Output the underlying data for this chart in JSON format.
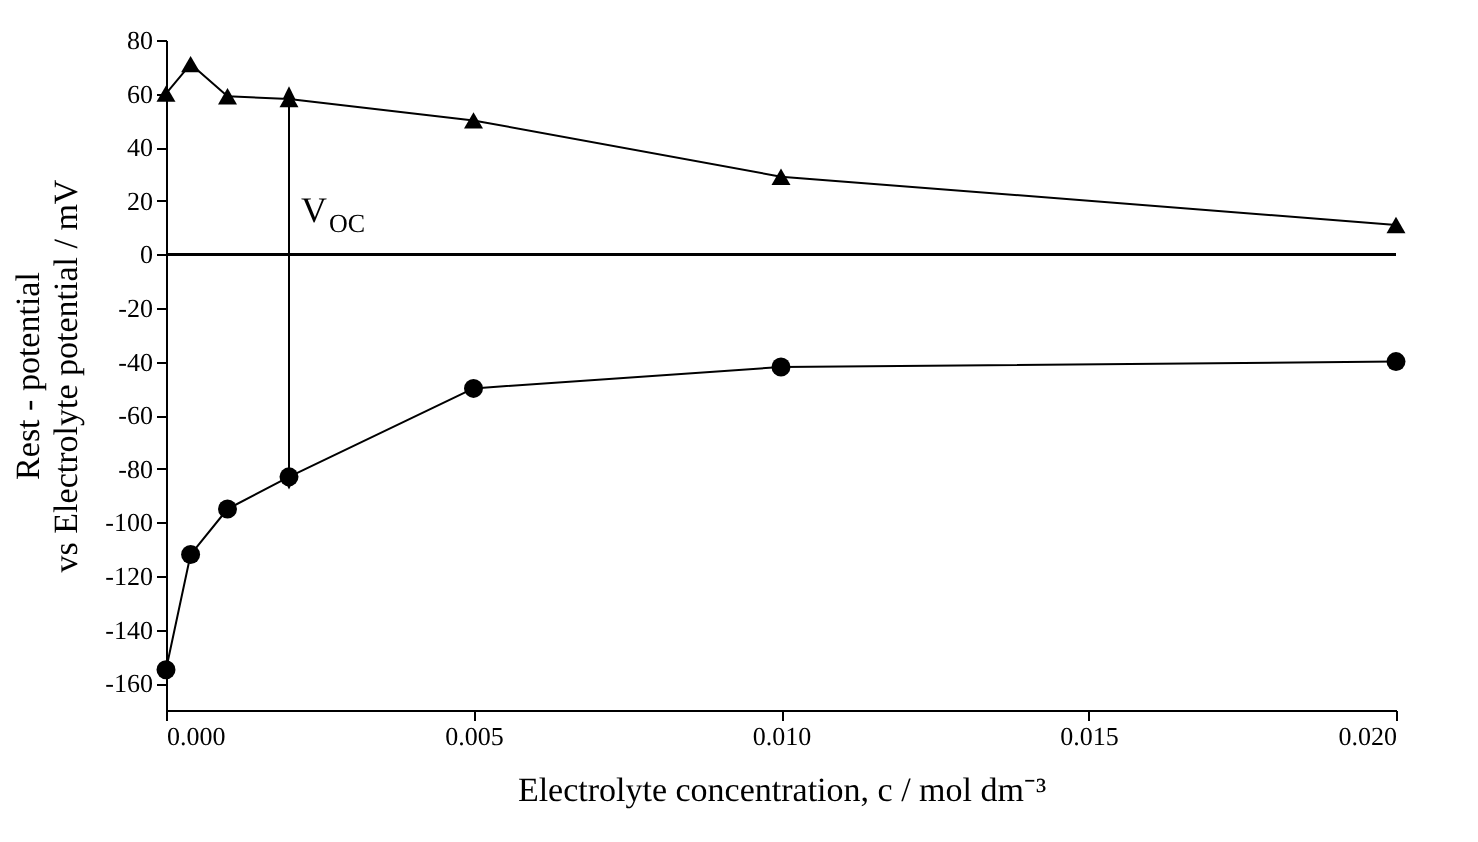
{
  "chart_data": {
    "type": "line",
    "xlabel": "Electrolyte concentration, c / mol dm⁻³",
    "ylabel": "Rest - potential\nvs Electrolyte potential / mV",
    "xlim": [
      0,
      0.02
    ],
    "xticks": [
      {
        "value": 0,
        "label": "0.000"
      },
      {
        "value": 0.005,
        "label": "0.005"
      },
      {
        "value": 0.01,
        "label": "0.010"
      },
      {
        "value": 0.015,
        "label": "0.015"
      },
      {
        "value": 0.02,
        "label": "0.020"
      }
    ],
    "ylim": [
      -170,
      80
    ],
    "yticks": [
      -160,
      -140,
      -120,
      -100,
      -80,
      -60,
      -40,
      -20,
      0,
      20,
      40,
      60,
      80
    ],
    "x": [
      0,
      0.0004,
      0.001,
      0.002,
      0.005,
      0.01,
      0.02
    ],
    "series": [
      {
        "color": "#000000",
        "marker": "triangle",
        "values": [
          60,
          71,
          59,
          58,
          50,
          29,
          11
        ]
      },
      {
        "color": "#000000",
        "marker": "circle",
        "values": [
          -155,
          -112,
          -95,
          -83,
          -50,
          -42,
          -40
        ]
      }
    ],
    "ref_lines": [
      {
        "axis": "y",
        "value": 0,
        "color": "#000000",
        "line_style": "solid"
      }
    ],
    "annotations": [
      {
        "text": "V$_{OC}$",
        "x": 0.002,
        "y": 58
      }
    ],
    "grid": false
  }
}
